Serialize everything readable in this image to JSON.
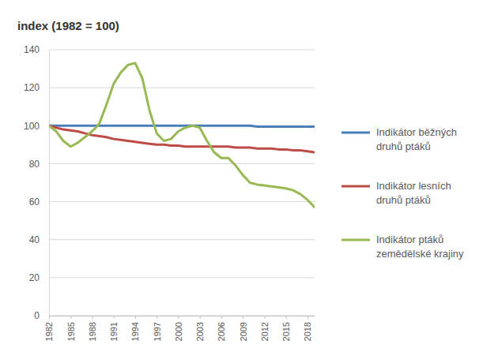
{
  "chart_data": {
    "type": "line",
    "title": "index (1982 = 100)",
    "x": [
      1982,
      1983,
      1984,
      1985,
      1986,
      1987,
      1988,
      1989,
      1990,
      1991,
      1992,
      1993,
      1994,
      1995,
      1996,
      1997,
      1998,
      1999,
      2000,
      2001,
      2002,
      2003,
      2004,
      2005,
      2006,
      2007,
      2008,
      2009,
      2010,
      2011,
      2012,
      2013,
      2014,
      2015,
      2016,
      2017,
      2018,
      2019
    ],
    "series": [
      {
        "name": "Indikátor běžných druhů ptáků",
        "color": "#4a7ebb",
        "values": [
          100,
          100,
          100,
          100,
          100,
          100,
          100,
          100,
          100,
          100,
          100,
          100,
          100,
          100,
          100,
          100,
          100,
          100,
          100,
          100,
          100,
          100,
          100,
          100,
          100,
          100,
          100,
          100,
          100,
          99.5,
          99.5,
          99.5,
          99.5,
          99.5,
          99.5,
          99.5,
          99.5,
          99.5
        ]
      },
      {
        "name": "Indikátor lesních druhů ptáků",
        "color": "#be4b48",
        "values": [
          100,
          99,
          98,
          97.5,
          97,
          96,
          95,
          94.5,
          94,
          93,
          92.5,
          92,
          91.5,
          91,
          90.5,
          90,
          90,
          89.5,
          89.5,
          89,
          89,
          89,
          89,
          89,
          89,
          89,
          88.5,
          88.5,
          88.5,
          88,
          88,
          88,
          87.5,
          87.5,
          87,
          87,
          86.5,
          86
        ]
      },
      {
        "name": "Indikátor ptáků zemědělské krajiny",
        "color": "#98b954",
        "values": [
          100,
          97,
          92,
          89,
          91,
          94,
          97,
          101,
          111,
          122,
          128,
          132,
          133,
          125,
          108,
          96,
          92,
          93,
          97,
          99,
          100,
          99,
          92,
          86,
          83,
          83,
          79,
          74,
          70,
          69,
          68.5,
          68,
          67.5,
          67,
          66,
          64,
          61,
          57
        ]
      }
    ],
    "xlim": [
      1982,
      2019
    ],
    "xticks": [
      1982,
      1985,
      1988,
      1991,
      1994,
      1997,
      2000,
      2003,
      2006,
      2009,
      2012,
      2015,
      2018
    ],
    "ylim": [
      0,
      140
    ],
    "yticks": [
      0,
      20,
      40,
      60,
      80,
      100,
      120,
      140
    ],
    "grid": true,
    "legend": "right"
  }
}
